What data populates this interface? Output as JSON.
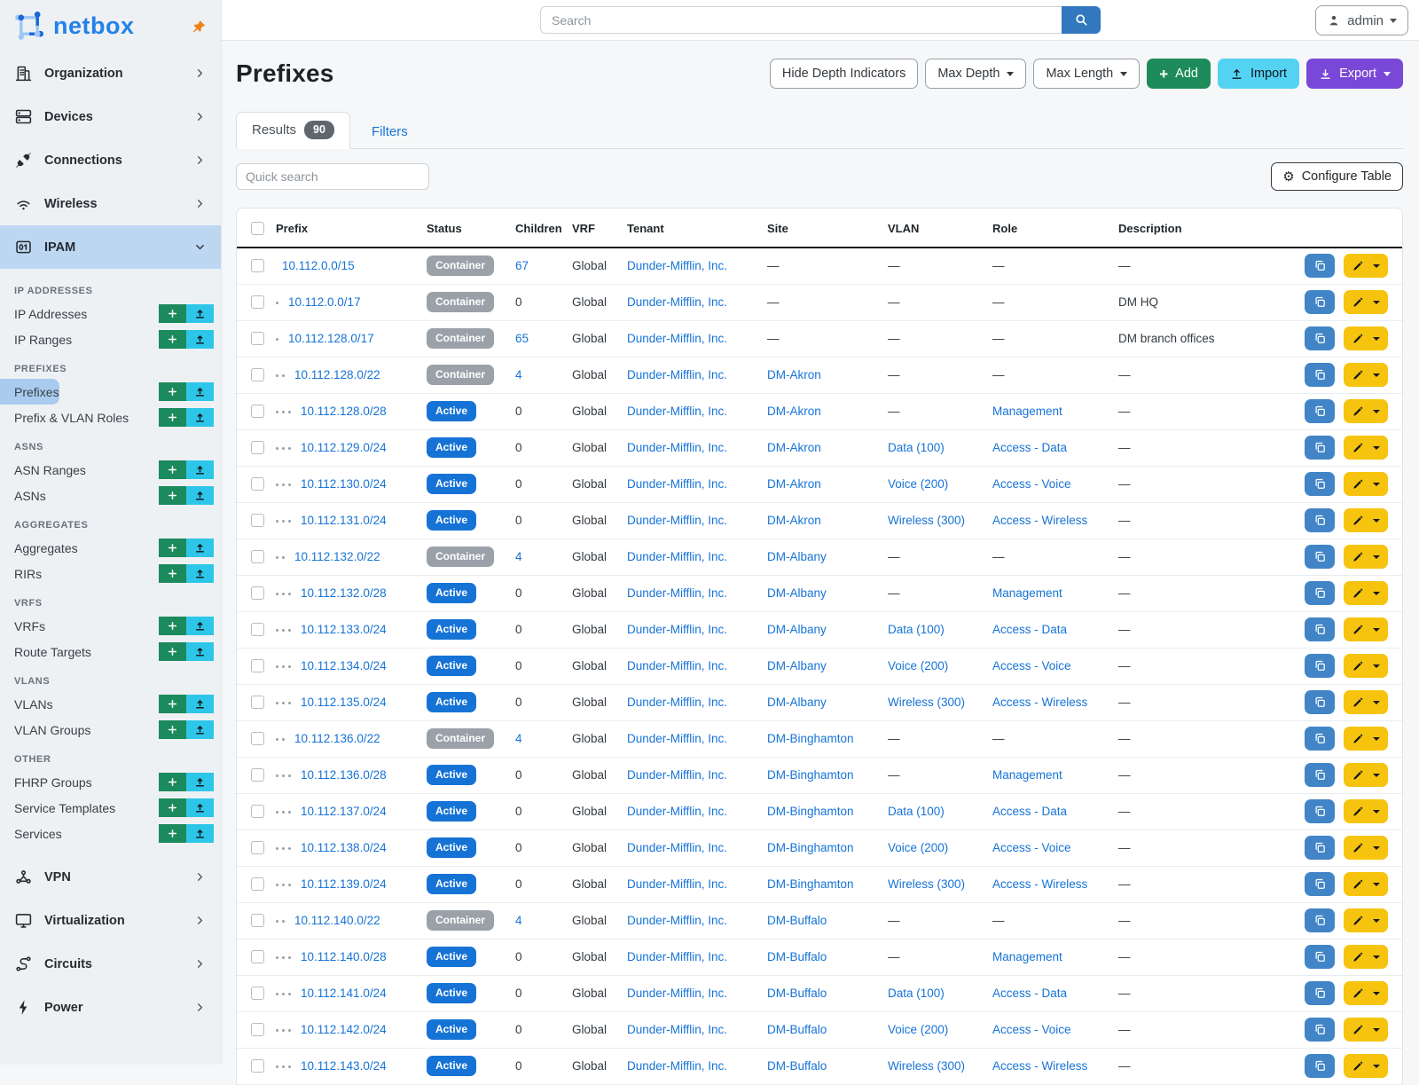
{
  "colors": {
    "brand_blue": "#2481e8",
    "pin_orange": "#f08118",
    "link_blue": "#1673d6",
    "status_container": "#9aa1a9",
    "status_active": "#1673d6",
    "sidebar_active": "#bdd7f3",
    "sidebar_selected_pill": "#a9cbf0",
    "add_green": "#1e8c5a",
    "sidebar_green": "#1b8a5c",
    "sidebar_cyan": "#2ec6e8",
    "import_cyan": "#54d2f2",
    "export_purple": "#7a48d8",
    "search_blue": "#3178be",
    "edit_yellow": "#f6c40e",
    "clone_blue": "#4285c7"
  },
  "sidebar": {
    "logo_text": "netbox",
    "pin_icon": "pin-icon",
    "top_items": [
      {
        "label": "Organization",
        "icon": "building-icon"
      },
      {
        "label": "Devices",
        "icon": "server-icon"
      },
      {
        "label": "Connections",
        "icon": "plug-icon"
      },
      {
        "label": "Wireless",
        "icon": "wifi-icon"
      }
    ],
    "active_item": {
      "label": "IPAM",
      "icon": "binary-icon"
    },
    "ipam_groups": [
      {
        "header": "IP Addresses",
        "items": [
          {
            "label": "IP Addresses"
          },
          {
            "label": "IP Ranges"
          }
        ]
      },
      {
        "header": "Prefixes",
        "items": [
          {
            "label": "Prefixes",
            "selected": true
          },
          {
            "label": "Prefix & VLAN Roles"
          }
        ]
      },
      {
        "header": "ASNs",
        "items": [
          {
            "label": "ASN Ranges"
          },
          {
            "label": "ASNs"
          }
        ]
      },
      {
        "header": "Aggregates",
        "items": [
          {
            "label": "Aggregates"
          },
          {
            "label": "RIRs"
          }
        ]
      },
      {
        "header": "VRFs",
        "items": [
          {
            "label": "VRFs"
          },
          {
            "label": "Route Targets"
          }
        ]
      },
      {
        "header": "VLANs",
        "items": [
          {
            "label": "VLANs"
          },
          {
            "label": "VLAN Groups"
          }
        ]
      },
      {
        "header": "Other",
        "items": [
          {
            "label": "FHRP Groups"
          },
          {
            "label": "Service Templates"
          },
          {
            "label": "Services"
          }
        ]
      }
    ],
    "bottom_items": [
      {
        "label": "VPN",
        "icon": "network-icon"
      },
      {
        "label": "Virtualization",
        "icon": "monitor-icon"
      },
      {
        "label": "Circuits",
        "icon": "route-icon"
      },
      {
        "label": "Power",
        "icon": "bolt-icon"
      }
    ]
  },
  "header": {
    "search_placeholder": "Search",
    "user": "admin"
  },
  "page": {
    "title": "Prefixes",
    "buttons": {
      "hide_depth": "Hide Depth Indicators",
      "max_depth": "Max Depth",
      "max_length": "Max Length",
      "add": "Add",
      "import": "Import",
      "export": "Export"
    },
    "tabs": {
      "results": "Results",
      "results_count": "90",
      "filters": "Filters"
    },
    "quick_search_placeholder": "Quick search",
    "configure_table": "Configure Table"
  },
  "table": {
    "columns": [
      "Prefix",
      "Status",
      "Children",
      "VRF",
      "Tenant",
      "Site",
      "VLAN",
      "Role",
      "Description"
    ],
    "rows": [
      {
        "prefix": "10.112.0.0/15",
        "depth": 0,
        "status": "Container",
        "children": "67",
        "vrf": "Global",
        "tenant": "Dunder-Mifflin, Inc.",
        "site": "—",
        "vlan": "—",
        "role": "—",
        "description": "—"
      },
      {
        "prefix": "10.112.0.0/17",
        "depth": 1,
        "status": "Container",
        "children": "0",
        "vrf": "Global",
        "tenant": "Dunder-Mifflin, Inc.",
        "site": "—",
        "vlan": "—",
        "role": "—",
        "description": "DM HQ"
      },
      {
        "prefix": "10.112.128.0/17",
        "depth": 1,
        "status": "Container",
        "children": "65",
        "vrf": "Global",
        "tenant": "Dunder-Mifflin, Inc.",
        "site": "—",
        "vlan": "—",
        "role": "—",
        "description": "DM branch offices"
      },
      {
        "prefix": "10.112.128.0/22",
        "depth": 2,
        "status": "Container",
        "children": "4",
        "vrf": "Global",
        "tenant": "Dunder-Mifflin, Inc.",
        "site": "DM-Akron",
        "vlan": "—",
        "role": "—",
        "description": "—"
      },
      {
        "prefix": "10.112.128.0/28",
        "depth": 3,
        "status": "Active",
        "children": "0",
        "vrf": "Global",
        "tenant": "Dunder-Mifflin, Inc.",
        "site": "DM-Akron",
        "vlan": "—",
        "role": "Management",
        "description": "—"
      },
      {
        "prefix": "10.112.129.0/24",
        "depth": 3,
        "status": "Active",
        "children": "0",
        "vrf": "Global",
        "tenant": "Dunder-Mifflin, Inc.",
        "site": "DM-Akron",
        "vlan": "Data (100)",
        "role": "Access - Data",
        "description": "—"
      },
      {
        "prefix": "10.112.130.0/24",
        "depth": 3,
        "status": "Active",
        "children": "0",
        "vrf": "Global",
        "tenant": "Dunder-Mifflin, Inc.",
        "site": "DM-Akron",
        "vlan": "Voice (200)",
        "role": "Access - Voice",
        "description": "—"
      },
      {
        "prefix": "10.112.131.0/24",
        "depth": 3,
        "status": "Active",
        "children": "0",
        "vrf": "Global",
        "tenant": "Dunder-Mifflin, Inc.",
        "site": "DM-Akron",
        "vlan": "Wireless (300)",
        "role": "Access - Wireless",
        "description": "—"
      },
      {
        "prefix": "10.112.132.0/22",
        "depth": 2,
        "status": "Container",
        "children": "4",
        "vrf": "Global",
        "tenant": "Dunder-Mifflin, Inc.",
        "site": "DM-Albany",
        "vlan": "—",
        "role": "—",
        "description": "—"
      },
      {
        "prefix": "10.112.132.0/28",
        "depth": 3,
        "status": "Active",
        "children": "0",
        "vrf": "Global",
        "tenant": "Dunder-Mifflin, Inc.",
        "site": "DM-Albany",
        "vlan": "—",
        "role": "Management",
        "description": "—"
      },
      {
        "prefix": "10.112.133.0/24",
        "depth": 3,
        "status": "Active",
        "children": "0",
        "vrf": "Global",
        "tenant": "Dunder-Mifflin, Inc.",
        "site": "DM-Albany",
        "vlan": "Data (100)",
        "role": "Access - Data",
        "description": "—"
      },
      {
        "prefix": "10.112.134.0/24",
        "depth": 3,
        "status": "Active",
        "children": "0",
        "vrf": "Global",
        "tenant": "Dunder-Mifflin, Inc.",
        "site": "DM-Albany",
        "vlan": "Voice (200)",
        "role": "Access - Voice",
        "description": "—"
      },
      {
        "prefix": "10.112.135.0/24",
        "depth": 3,
        "status": "Active",
        "children": "0",
        "vrf": "Global",
        "tenant": "Dunder-Mifflin, Inc.",
        "site": "DM-Albany",
        "vlan": "Wireless (300)",
        "role": "Access - Wireless",
        "description": "—"
      },
      {
        "prefix": "10.112.136.0/22",
        "depth": 2,
        "status": "Container",
        "children": "4",
        "vrf": "Global",
        "tenant": "Dunder-Mifflin, Inc.",
        "site": "DM-Binghamton",
        "vlan": "—",
        "role": "—",
        "description": "—"
      },
      {
        "prefix": "10.112.136.0/28",
        "depth": 3,
        "status": "Active",
        "children": "0",
        "vrf": "Global",
        "tenant": "Dunder-Mifflin, Inc.",
        "site": "DM-Binghamton",
        "vlan": "—",
        "role": "Management",
        "description": "—"
      },
      {
        "prefix": "10.112.137.0/24",
        "depth": 3,
        "status": "Active",
        "children": "0",
        "vrf": "Global",
        "tenant": "Dunder-Mifflin, Inc.",
        "site": "DM-Binghamton",
        "vlan": "Data (100)",
        "role": "Access - Data",
        "description": "—"
      },
      {
        "prefix": "10.112.138.0/24",
        "depth": 3,
        "status": "Active",
        "children": "0",
        "vrf": "Global",
        "tenant": "Dunder-Mifflin, Inc.",
        "site": "DM-Binghamton",
        "vlan": "Voice (200)",
        "role": "Access - Voice",
        "description": "—"
      },
      {
        "prefix": "10.112.139.0/24",
        "depth": 3,
        "status": "Active",
        "children": "0",
        "vrf": "Global",
        "tenant": "Dunder-Mifflin, Inc.",
        "site": "DM-Binghamton",
        "vlan": "Wireless (300)",
        "role": "Access - Wireless",
        "description": "—"
      },
      {
        "prefix": "10.112.140.0/22",
        "depth": 2,
        "status": "Container",
        "children": "4",
        "vrf": "Global",
        "tenant": "Dunder-Mifflin, Inc.",
        "site": "DM-Buffalo",
        "vlan": "—",
        "role": "—",
        "description": "—"
      },
      {
        "prefix": "10.112.140.0/28",
        "depth": 3,
        "status": "Active",
        "children": "0",
        "vrf": "Global",
        "tenant": "Dunder-Mifflin, Inc.",
        "site": "DM-Buffalo",
        "vlan": "—",
        "role": "Management",
        "description": "—"
      },
      {
        "prefix": "10.112.141.0/24",
        "depth": 3,
        "status": "Active",
        "children": "0",
        "vrf": "Global",
        "tenant": "Dunder-Mifflin, Inc.",
        "site": "DM-Buffalo",
        "vlan": "Data (100)",
        "role": "Access - Data",
        "description": "—"
      },
      {
        "prefix": "10.112.142.0/24",
        "depth": 3,
        "status": "Active",
        "children": "0",
        "vrf": "Global",
        "tenant": "Dunder-Mifflin, Inc.",
        "site": "DM-Buffalo",
        "vlan": "Voice (200)",
        "role": "Access - Voice",
        "description": "—"
      },
      {
        "prefix": "10.112.143.0/24",
        "depth": 3,
        "status": "Active",
        "children": "0",
        "vrf": "Global",
        "tenant": "Dunder-Mifflin, Inc.",
        "site": "DM-Buffalo",
        "vlan": "Wireless (300)",
        "role": "Access - Wireless",
        "description": "—"
      }
    ]
  }
}
